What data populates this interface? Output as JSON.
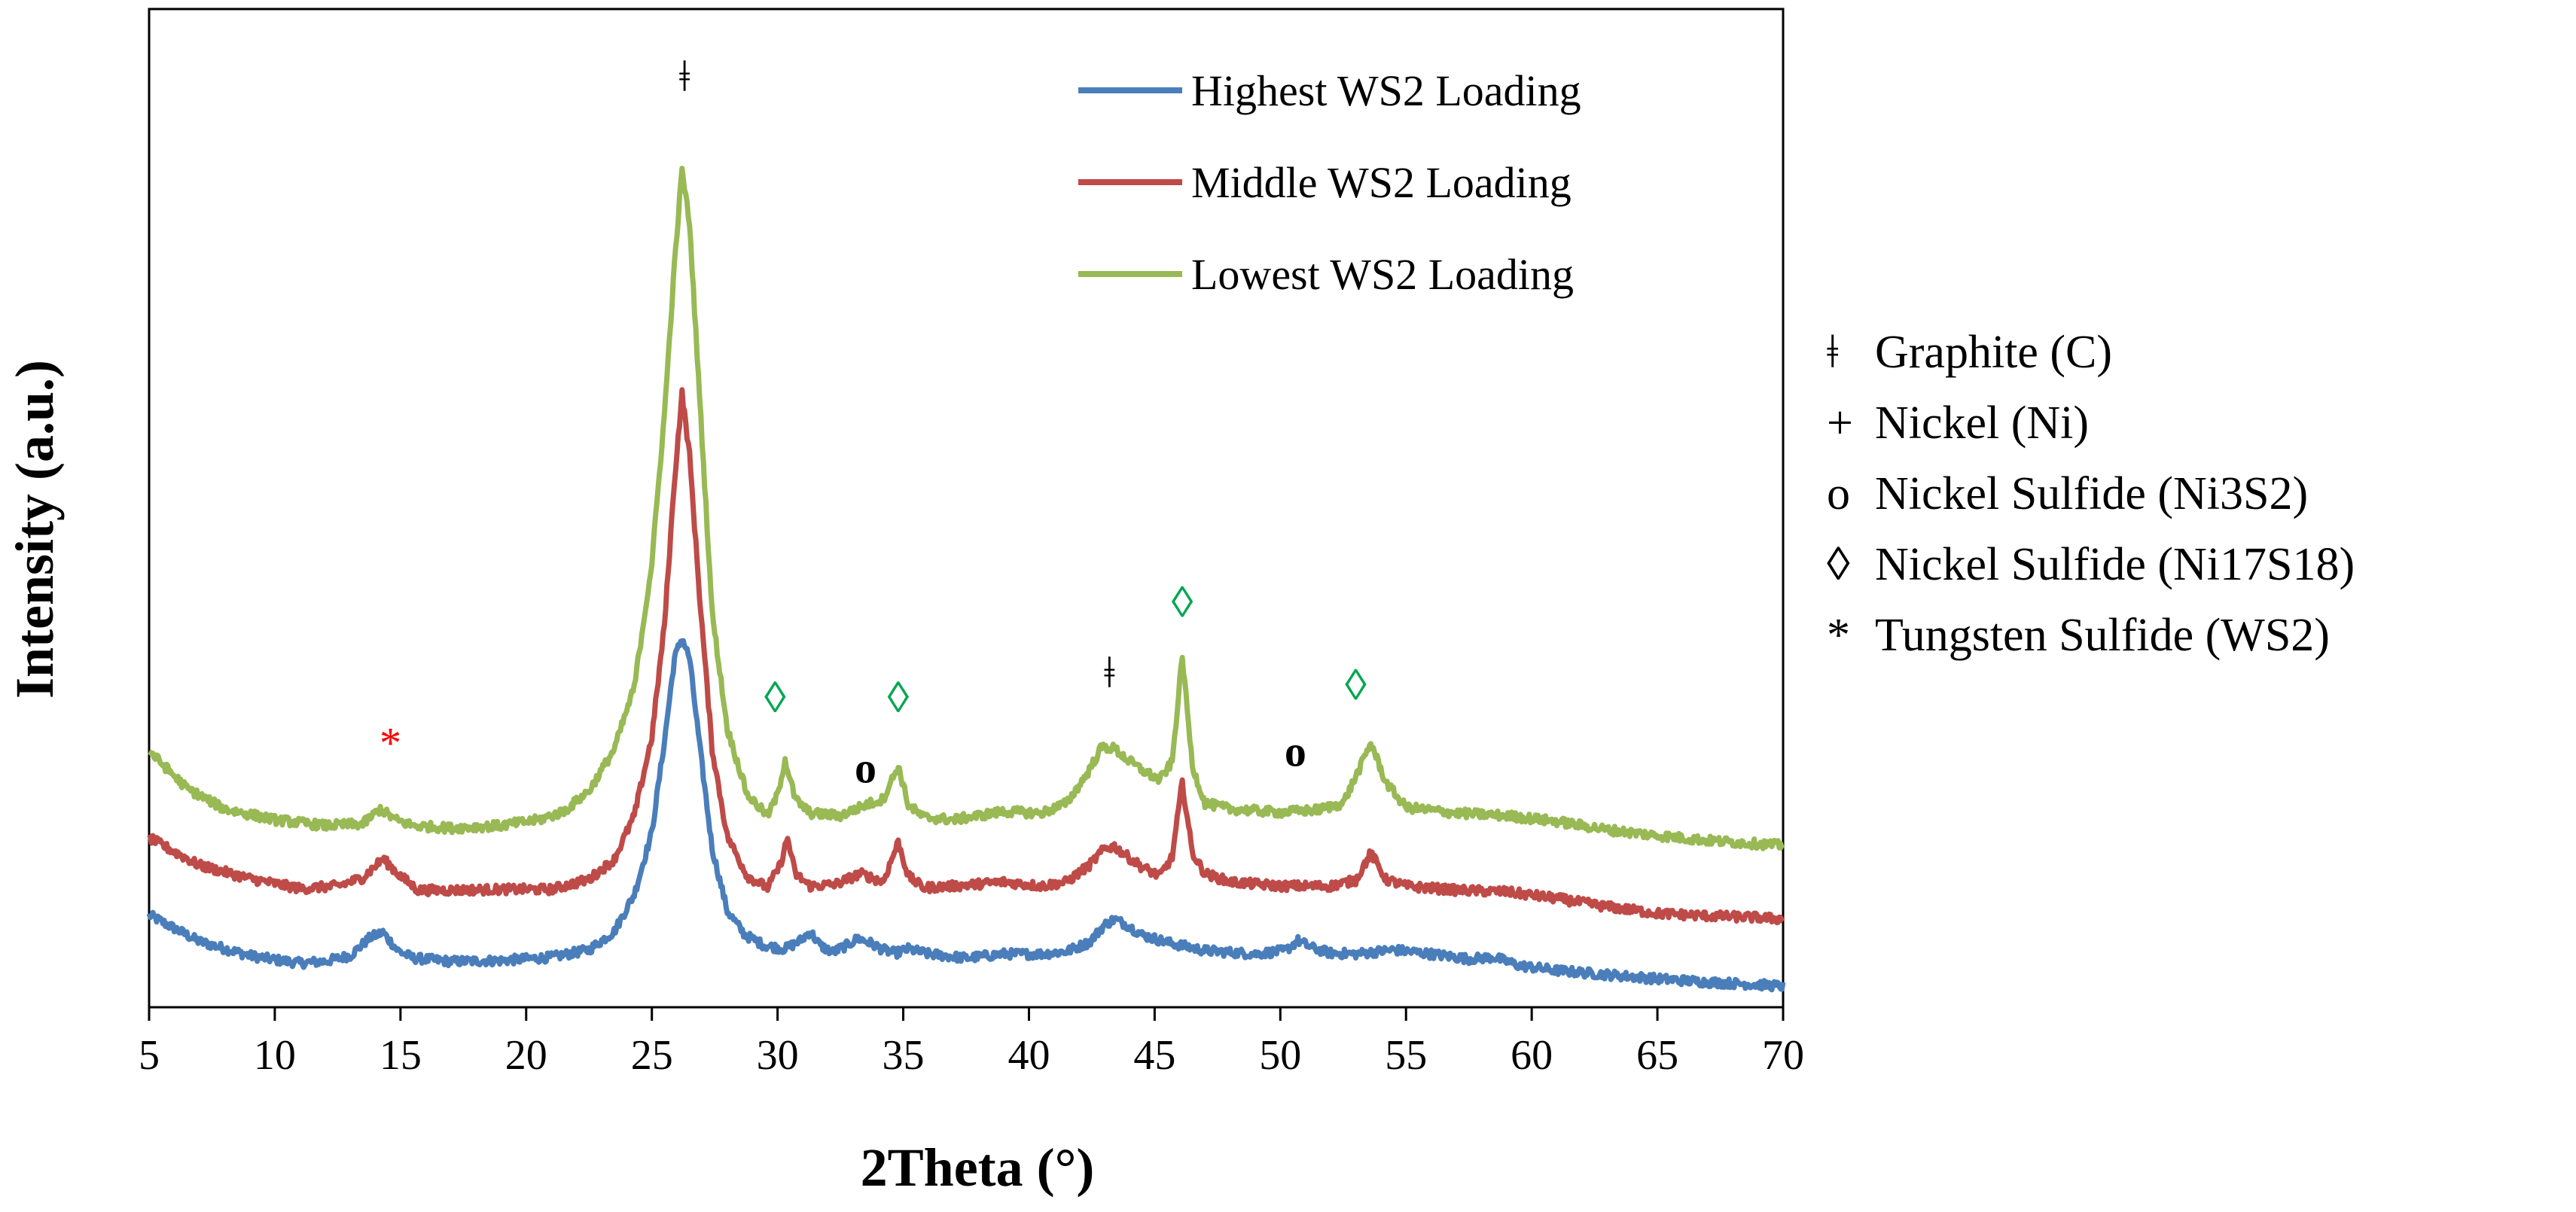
{
  "colors": {
    "highest": "#4a7ebb",
    "middle": "#be4b48",
    "lowest": "#98b954",
    "graphite": "#000000",
    "nickel": "#4f95d6",
    "ni3s2": "#000000",
    "ni17s18": "#00a651",
    "ws2": "#ff0000"
  },
  "chart_data": {
    "type": "line",
    "title": "",
    "xlabel": "2Theta (°)",
    "ylabel": "Intensity (a.u.)",
    "xlim": [
      5,
      70
    ],
    "ylim": [
      0,
      100
    ],
    "xticks": [
      5,
      10,
      15,
      20,
      25,
      30,
      35,
      40,
      45,
      50,
      55,
      60,
      65,
      70
    ],
    "xtick_labels": [
      "5",
      "10",
      "15",
      "20",
      "25",
      "30",
      "35",
      "40",
      "45",
      "50",
      "55",
      "60",
      "65",
      "70"
    ],
    "grid": false,
    "legend_position": "top-right",
    "series": [
      {
        "name": "Highest WS2 Loading",
        "color_key": "highest",
        "x": [
          5,
          7,
          9,
          10,
          11,
          12,
          13,
          13.8,
          14.3,
          14.9,
          15.5,
          17,
          19,
          21,
          22.5,
          23.5,
          24.3,
          25,
          25.5,
          25.9,
          26.2,
          26.5,
          26.9,
          27.4,
          28,
          28.7,
          29.5,
          30.3,
          30.9,
          31.3,
          31.7,
          32.2,
          32.8,
          33.2,
          33.7,
          34.2,
          34.7,
          35.2,
          36,
          37.5,
          39,
          40.5,
          41.5,
          42.4,
          43,
          43.4,
          43.9,
          44.5,
          45.5,
          47,
          49,
          50.2,
          50.7,
          51.3,
          52,
          53,
          54.5,
          56,
          57.5,
          58.5,
          59.5,
          61,
          63,
          65,
          67,
          69,
          70
        ],
        "values": [
          9.5,
          6.3,
          4.6,
          4.1,
          3.7,
          3.9,
          4.6,
          6.8,
          7.4,
          5.2,
          4.3,
          3.9,
          4.0,
          4.4,
          5.3,
          7.5,
          12.0,
          19.5,
          30.5,
          40.5,
          43.0,
          40.5,
          30.0,
          17.5,
          10.0,
          7.1,
          5.8,
          5.4,
          6.4,
          7.5,
          5.8,
          5.0,
          5.9,
          6.7,
          6.1,
          5.3,
          4.9,
          5.4,
          4.8,
          4.3,
          4.8,
          4.8,
          5.1,
          6.2,
          8.3,
          9.0,
          8.3,
          7.1,
          6.2,
          5.2,
          4.8,
          5.2,
          6.4,
          5.5,
          4.9,
          4.8,
          5.3,
          4.8,
          4.2,
          4.4,
          3.4,
          2.8,
          2.3,
          1.8,
          1.4,
          1.1,
          0.9
        ]
      },
      {
        "name": "Middle WS2 Loading",
        "color_key": "middle",
        "x": [
          5,
          7,
          9,
          11,
          12.5,
          13.5,
          14.3,
          15,
          15.7,
          17,
          19,
          21,
          22.5,
          23.5,
          24.3,
          25,
          25.5,
          25.9,
          26.2,
          26.5,
          26.9,
          27.4,
          28,
          28.8,
          29.6,
          30.1,
          30.4,
          30.7,
          31.3,
          32.3,
          33.3,
          34.2,
          34.8,
          35.2,
          35.8,
          37,
          39,
          40.5,
          41.5,
          42.4,
          43,
          43.4,
          43.9,
          44.5,
          45.2,
          45.7,
          46.1,
          46.5,
          47,
          48,
          50,
          52,
          53,
          53.6,
          54.2,
          55,
          57,
          59,
          61,
          63,
          65,
          67,
          69,
          70
        ],
        "values": [
          18.8,
          15.5,
          13.9,
          12.7,
          13.0,
          14.0,
          16.3,
          14.2,
          12.5,
          12.5,
          12.6,
          12.6,
          13.8,
          16.2,
          21.5,
          31.0,
          44.5,
          62.0,
          72.5,
          65.0,
          48.0,
          29.5,
          19.0,
          14.2,
          12.8,
          15.5,
          18.8,
          14.5,
          13.0,
          13.2,
          14.5,
          13.5,
          18.3,
          14.2,
          12.8,
          13.0,
          13.5,
          13.0,
          13.5,
          15.5,
          17.5,
          17.8,
          16.6,
          15.3,
          14.2,
          16.5,
          25.5,
          17.0,
          14.5,
          13.5,
          13.0,
          13.0,
          13.7,
          17.0,
          13.8,
          13.0,
          12.5,
          12.3,
          11.5,
          10.5,
          9.7,
          9.4,
          9.2,
          9.0
        ]
      },
      {
        "name": "Lowest WS2 Loading",
        "color_key": "lowest",
        "x": [
          5,
          6.5,
          8,
          10,
          12,
          13.5,
          14.2,
          14.8,
          15.5,
          17,
          19,
          20.5,
          21.5,
          22.5,
          23.5,
          24.3,
          25,
          25.5,
          25.9,
          26.2,
          26.5,
          26.9,
          27.4,
          28,
          28.8,
          29.6,
          30,
          30.3,
          30.7,
          31.3,
          32.5,
          33.5,
          34.2,
          34.8,
          35.2,
          35.8,
          37,
          39,
          40.5,
          41.5,
          42.3,
          42.9,
          43.4,
          43.9,
          44.5,
          45.2,
          45.7,
          46.1,
          46.5,
          47,
          48,
          50,
          51.5,
          52.5,
          53.2,
          53.6,
          54.2,
          55,
          57,
          59,
          61,
          63,
          65,
          67,
          69,
          70
        ],
        "values": [
          29.3,
          24.8,
          22.3,
          21.0,
          20.3,
          20.5,
          22.3,
          21.0,
          20.3,
          20.0,
          20.3,
          21.0,
          22.0,
          24.5,
          29.5,
          37.0,
          52.0,
          70.0,
          88.0,
          99.5,
          93.0,
          72.0,
          46.0,
          32.0,
          24.0,
          21.5,
          24.0,
          28.3,
          23.5,
          21.8,
          21.5,
          22.8,
          23.5,
          27.5,
          22.8,
          21.3,
          21.0,
          22.0,
          21.8,
          23.0,
          26.5,
          29.8,
          29.6,
          28.3,
          27.0,
          25.8,
          28.0,
          40.8,
          27.5,
          23.0,
          22.3,
          21.9,
          22.2,
          23.0,
          27.5,
          30.3,
          25.5,
          22.5,
          21.8,
          21.5,
          20.8,
          19.8,
          19.1,
          18.5,
          18.1,
          17.9
        ]
      }
    ],
    "peak_markers": [
      {
        "x": 26.3,
        "y": 109,
        "symbol": "ǂ",
        "phase": "graphite"
      },
      {
        "x": 14.6,
        "y": 28.5,
        "symbol": "*",
        "phase": "ws2"
      },
      {
        "x": 29.9,
        "y": 34,
        "symbol": "◊",
        "phase": "ni17s18"
      },
      {
        "x": 34.8,
        "y": 34,
        "symbol": "◊",
        "phase": "ni17s18"
      },
      {
        "x": 33.5,
        "y": 25.5,
        "symbol": "o",
        "phase": "ni3s2"
      },
      {
        "x": 43.2,
        "y": 37,
        "symbol": "ǂ",
        "phase": "graphite"
      },
      {
        "x": 46.1,
        "y": 45.5,
        "symbol": "◊",
        "phase": "ni17s18"
      },
      {
        "x": 50.6,
        "y": 27.5,
        "symbol": "o",
        "phase": "ni3s2"
      },
      {
        "x": 53.0,
        "y": 35.5,
        "symbol": "◊",
        "phase": "ni17s18"
      }
    ],
    "phase_key": [
      {
        "symbol": "ǂ",
        "label": "Graphite (C)",
        "color_key": "graphite"
      },
      {
        "symbol": "+",
        "label": "Nickel (Ni)",
        "color_key": "nickel"
      },
      {
        "symbol": "o",
        "label": "Nickel Sulfide (Ni3S2)",
        "color_key": "ni3s2"
      },
      {
        "symbol": "◊",
        "label": "Nickel Sulfide (Ni17S18)",
        "color_key": "ni17s18"
      },
      {
        "symbol": "*",
        "label": "Tungsten Sulfide (WS2)",
        "color_key": "ws2"
      }
    ]
  }
}
